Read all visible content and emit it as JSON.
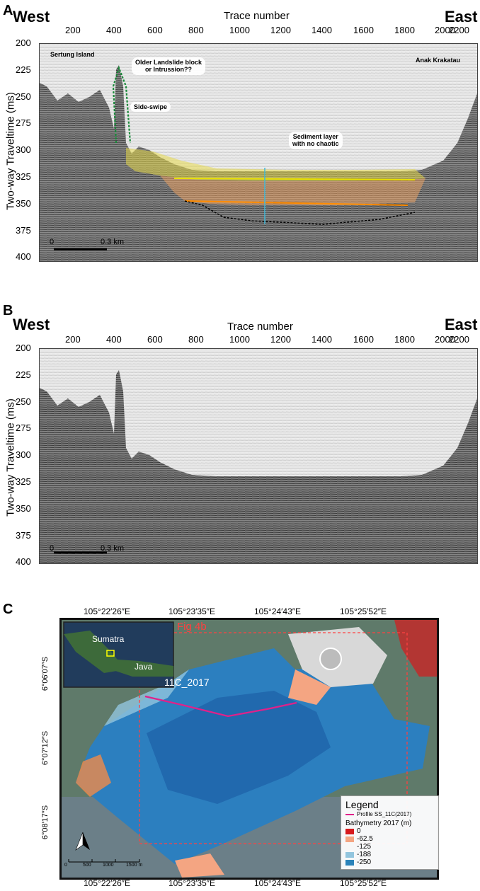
{
  "panels": [
    {
      "letter": "A",
      "west": "West",
      "east": "East",
      "x_title": "Trace number",
      "y_title": "Two-way Traveltime (ms)",
      "x_ticks": [
        "200",
        "400",
        "600",
        "800",
        "1000",
        "1200",
        "1400",
        "1600",
        "1800",
        "2000",
        "2200"
      ],
      "y_ticks": [
        "200",
        "225",
        "250",
        "275",
        "300",
        "325",
        "350",
        "375",
        "400"
      ],
      "scale_zero": "0",
      "scale_label": "0.3 km",
      "annotations": {
        "island_left": "Sertung Island",
        "island_right": "Anak Krakatau",
        "older_block_1": "Older Landslide block",
        "older_block_2": "or Intrussion??",
        "side_swipe": "Side-swipe",
        "sediment_1": "Sediment layer",
        "sediment_2": "with no chaotic"
      }
    },
    {
      "letter": "B",
      "west": "West",
      "east": "East",
      "x_title": "Trace number",
      "y_title": "Two-way Traveltime (ms)",
      "x_ticks": [
        "200",
        "400",
        "600",
        "800",
        "1000",
        "1200",
        "1400",
        "1600",
        "1800",
        "2000",
        "2200"
      ],
      "y_ticks": [
        "200",
        "225",
        "250",
        "275",
        "300",
        "325",
        "350",
        "375",
        "400"
      ],
      "scale_zero": "0",
      "scale_label": "0.3 km"
    }
  ],
  "map": {
    "letter": "C",
    "lon_ticks": [
      "105°22′26″E",
      "105°23′35″E",
      "105°24′43″E",
      "105°25′52″E"
    ],
    "lat_ticks": [
      "6°06′07″S",
      "6°07′12″S",
      "6°08′17″S"
    ],
    "inset_labels": {
      "sumatra": "Sumatra",
      "java": "Java"
    },
    "fig_label": "Fig 4b",
    "profile_label": "11C_2017",
    "scale_ticks": [
      "0",
      "500",
      "1000",
      "1500 m"
    ],
    "legend": {
      "title": "Legend",
      "profile": "Profile SS_11C(2017)",
      "bathy_title": "Bathymetry 2017 (m)",
      "items": [
        {
          "label": "0",
          "color": "#d7191c"
        },
        {
          "label": "-62.5",
          "color": "#f4a582"
        },
        {
          "label": "-125",
          "color": "#f7f7f7"
        },
        {
          "label": "-188",
          "color": "#92c5de"
        },
        {
          "label": "-250",
          "color": "#2b83ba"
        }
      ]
    },
    "colors": {
      "profile": "#e0218a",
      "frame": "#ff4040",
      "inset_box": "#ffff00"
    }
  }
}
